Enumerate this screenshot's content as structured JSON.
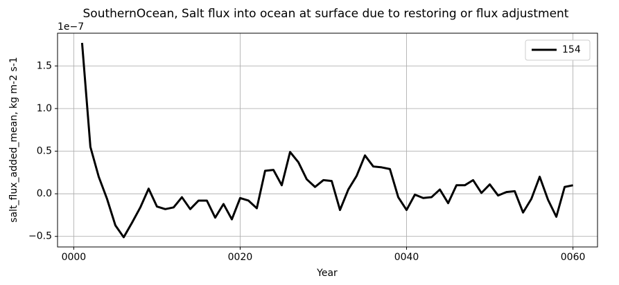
{
  "chart_data": {
    "type": "line",
    "title": "SouthernOcean, Salt flux into ocean at surface due to restoring or flux adjustment",
    "x_label": "Year",
    "y_label": "salt_flux_added_mean, kg m-2 s-1",
    "y_offset_text": "1e−7",
    "x": [
      1,
      2,
      3,
      4,
      5,
      6,
      7,
      8,
      9,
      10,
      11,
      12,
      13,
      14,
      15,
      16,
      17,
      18,
      19,
      20,
      21,
      22,
      23,
      24,
      25,
      26,
      27,
      28,
      29,
      30,
      31,
      32,
      33,
      34,
      35,
      36,
      37,
      38,
      39,
      40,
      41,
      42,
      43,
      44,
      45,
      46,
      47,
      48,
      49,
      50,
      51,
      52,
      53,
      54,
      55,
      56,
      57,
      58,
      59,
      60
    ],
    "series": [
      {
        "name": "154",
        "color": "#000000",
        "values": [
          1.77,
          0.55,
          0.2,
          -0.06,
          -0.37,
          -0.51,
          -0.34,
          -0.16,
          0.06,
          -0.15,
          -0.18,
          -0.16,
          -0.04,
          -0.18,
          -0.08,
          -0.08,
          -0.28,
          -0.12,
          -0.3,
          -0.05,
          -0.08,
          -0.17,
          0.27,
          0.28,
          0.1,
          0.49,
          0.37,
          0.17,
          0.08,
          0.16,
          0.15,
          -0.19,
          0.05,
          0.21,
          0.45,
          0.32,
          0.31,
          0.29,
          -0.04,
          -0.19,
          -0.01,
          -0.05,
          -0.04,
          0.05,
          -0.11,
          0.1,
          0.1,
          0.16,
          0.01,
          0.11,
          -0.02,
          0.02,
          0.03,
          -0.22,
          -0.06,
          0.2,
          -0.07,
          -0.27,
          0.08,
          0.1
        ]
      }
    ],
    "xlim": [
      -1.95,
      62.95
    ],
    "xticks": [
      {
        "value": 0,
        "label": "0000"
      },
      {
        "value": 20,
        "label": "0020"
      },
      {
        "value": 40,
        "label": "0040"
      },
      {
        "value": 60,
        "label": "0060"
      }
    ],
    "ylim": [
      -0.624,
      1.884
    ],
    "yticks": [
      {
        "value": -0.5,
        "label": "−0.5"
      },
      {
        "value": 0,
        "label": "0.0"
      },
      0.5,
      {
        "value": 1,
        "label": "1.0"
      },
      1.5
    ],
    "grid": true,
    "legend": "upper right"
  }
}
